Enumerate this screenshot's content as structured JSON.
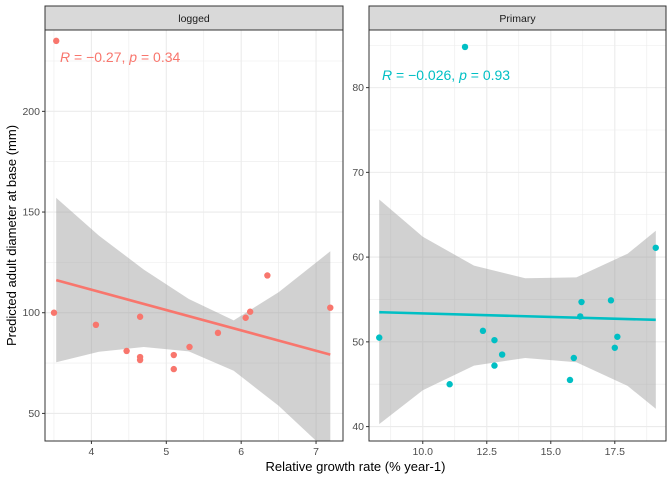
{
  "chart_data": {
    "type": "scatter",
    "xlabel": "Relative growth rate (% year-1)",
    "ylabel": "Predicted adult diameter at base (mm)",
    "grid": true,
    "legend": "none",
    "panels": [
      {
        "strip": "logged",
        "color": "#F8766D",
        "xlim": [
          3.38,
          7.36
        ],
        "ylim": [
          36.3,
          240.4
        ],
        "xticks": [
          4,
          5,
          6,
          7
        ],
        "yticks": [
          50,
          100,
          150,
          200
        ],
        "annotation": {
          "r_symbol": "R",
          "r_value": " = −0.27, ",
          "p_symbol": "p",
          "p_value": " = 0.34"
        },
        "points": [
          {
            "x": 3.53,
            "y": 235
          },
          {
            "x": 3.5,
            "y": 100
          },
          {
            "x": 4.06,
            "y": 94
          },
          {
            "x": 4.47,
            "y": 81
          },
          {
            "x": 4.65,
            "y": 98
          },
          {
            "x": 4.65,
            "y": 78
          },
          {
            "x": 4.65,
            "y": 76.5
          },
          {
            "x": 5.1,
            "y": 79
          },
          {
            "x": 5.1,
            "y": 72
          },
          {
            "x": 5.31,
            "y": 83
          },
          {
            "x": 5.69,
            "y": 90
          },
          {
            "x": 6.06,
            "y": 97.5
          },
          {
            "x": 6.12,
            "y": 100.5
          },
          {
            "x": 6.35,
            "y": 118.5
          },
          {
            "x": 7.19,
            "y": 102.5
          }
        ],
        "fit": {
          "x": [
            3.53,
            7.19
          ],
          "y": [
            116.2,
            79.2
          ]
        },
        "band": {
          "x": [
            3.53,
            4.1,
            4.7,
            5.3,
            5.9,
            6.5,
            7.19
          ],
          "lower": [
            75.4,
            80.6,
            83.0,
            80.8,
            71.2,
            53.8,
            29.8
          ],
          "upper": [
            157.0,
            138.3,
            121.4,
            106.8,
            96.2,
            110.2,
            130.5
          ]
        }
      },
      {
        "strip": "Primary",
        "color": "#00BFC4",
        "xlim": [
          7.9,
          19.5
        ],
        "ylim": [
          38.3,
          86.8
        ],
        "xticks": [
          10.0,
          12.5,
          15.0,
          17.5
        ],
        "xticklabels": [
          "10.0",
          "12.5",
          "15.0",
          "17.5"
        ],
        "yticks": [
          40,
          50,
          60,
          70,
          80
        ],
        "annotation": {
          "r_symbol": "R",
          "r_value": " = −0.026, ",
          "p_symbol": "p",
          "p_value": " = 0.93"
        },
        "points": [
          {
            "x": 11.65,
            "y": 84.8
          },
          {
            "x": 8.3,
            "y": 50.5
          },
          {
            "x": 11.05,
            "y": 45.0
          },
          {
            "x": 12.35,
            "y": 51.3
          },
          {
            "x": 12.8,
            "y": 50.2
          },
          {
            "x": 12.8,
            "y": 47.2
          },
          {
            "x": 13.1,
            "y": 48.5
          },
          {
            "x": 15.75,
            "y": 45.5
          },
          {
            "x": 15.9,
            "y": 48.1
          },
          {
            "x": 16.15,
            "y": 53.0
          },
          {
            "x": 16.2,
            "y": 54.7
          },
          {
            "x": 17.35,
            "y": 54.9
          },
          {
            "x": 17.5,
            "y": 49.3
          },
          {
            "x": 17.6,
            "y": 50.6
          },
          {
            "x": 19.1,
            "y": 61.1
          }
        ],
        "fit": {
          "x": [
            8.3,
            19.1
          ],
          "y": [
            53.5,
            52.6
          ]
        },
        "band": {
          "x": [
            8.3,
            10.0,
            12.0,
            14.0,
            16.0,
            18.0,
            19.1
          ],
          "lower": [
            40.3,
            44.3,
            47.2,
            48.1,
            47.6,
            44.8,
            42.1
          ],
          "upper": [
            66.8,
            62.4,
            59.0,
            57.5,
            57.6,
            60.4,
            63.1
          ]
        }
      }
    ]
  },
  "colors": {
    "panel_bg": "#ffffff",
    "grid": "#ebebeb",
    "border": "#333333",
    "strip_bg": "#d9d9d9",
    "band": "#999999",
    "logged": "#F8766D",
    "primary": "#00BFC4"
  }
}
